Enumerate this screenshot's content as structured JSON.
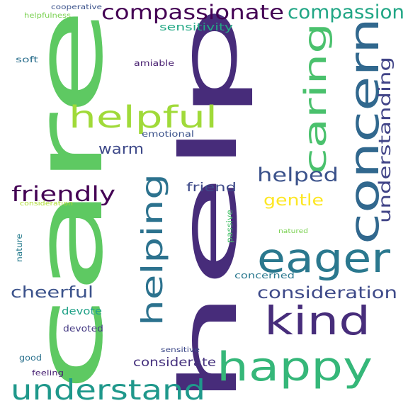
{
  "words": [
    {
      "text": "help",
      "color": "#472c7a"
    },
    {
      "text": "care",
      "color": "#5ec962"
    },
    {
      "text": "happy",
      "color": "#35b779"
    },
    {
      "text": "concern",
      "color": "#31688e"
    },
    {
      "text": "kind",
      "color": "#472d7b"
    },
    {
      "text": "eager",
      "color": "#2a788e"
    },
    {
      "text": "helpful",
      "color": "#a0da39"
    },
    {
      "text": "caring",
      "color": "#4ac16d"
    },
    {
      "text": "understand",
      "color": "#1f988b"
    },
    {
      "text": "helping",
      "color": "#2c728e"
    },
    {
      "text": "compassionate",
      "color": "#440154"
    },
    {
      "text": "compassion",
      "color": "#21a685"
    },
    {
      "text": "understanding",
      "color": "#414487"
    },
    {
      "text": "friendly",
      "color": "#440154"
    },
    {
      "text": "helped",
      "color": "#3b528b"
    },
    {
      "text": "consideration",
      "color": "#3e4a89"
    },
    {
      "text": "cheerful",
      "color": "#3b528b"
    },
    {
      "text": "warm",
      "color": "#3e4989"
    },
    {
      "text": "gentle",
      "color": "#fde725"
    },
    {
      "text": "friend",
      "color": "#3e4a89"
    },
    {
      "text": "considerate",
      "color": "#46327e"
    },
    {
      "text": "sensitivity",
      "color": "#22a884"
    },
    {
      "text": "concerned",
      "color": "#2a788e"
    },
    {
      "text": "devote",
      "color": "#1fa187"
    },
    {
      "text": "devoted",
      "color": "#443983"
    },
    {
      "text": "emotional",
      "color": "#3b528b"
    },
    {
      "text": "amiable",
      "color": "#481f70"
    },
    {
      "text": "soft",
      "color": "#2d708e"
    },
    {
      "text": "good",
      "color": "#2c728e"
    },
    {
      "text": "feeling",
      "color": "#482173"
    },
    {
      "text": "sensitive",
      "color": "#3e4a89"
    },
    {
      "text": "cooperative",
      "color": "#3b528b"
    },
    {
      "text": "helpfulness",
      "color": "#7ad151"
    },
    {
      "text": "consideration",
      "color": "#addc30"
    },
    {
      "text": "nature",
      "color": "#287c8e"
    },
    {
      "text": "passive",
      "color": "#4ac16d"
    },
    {
      "text": "natured",
      "color": "#7ad151"
    }
  ]
}
